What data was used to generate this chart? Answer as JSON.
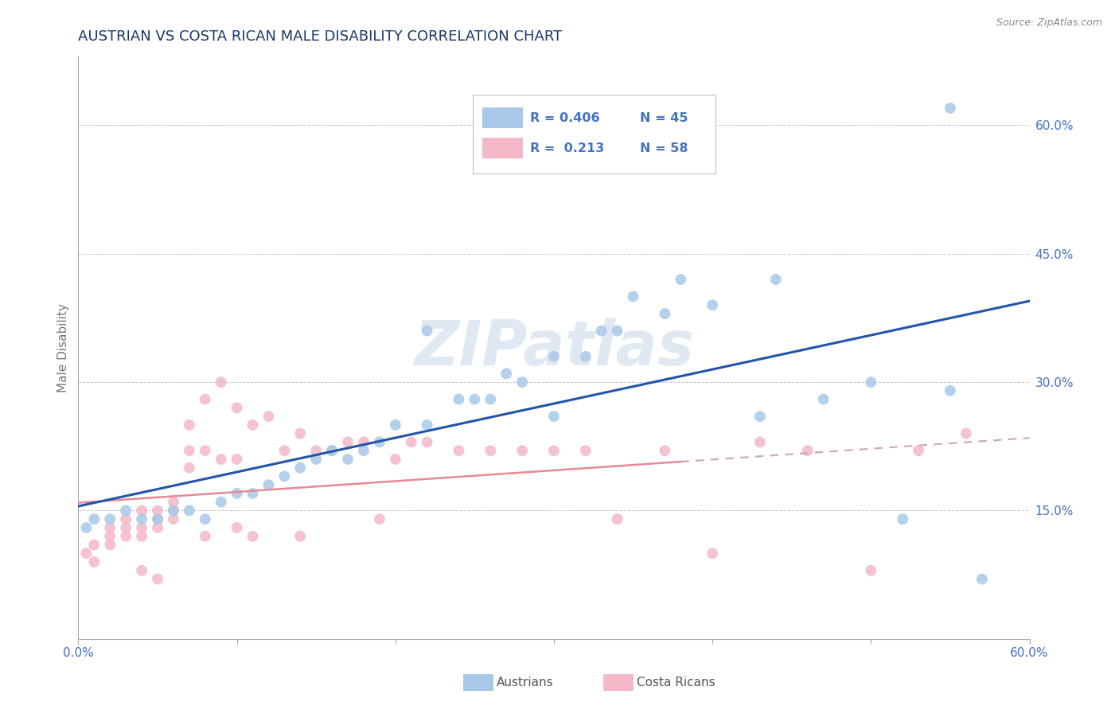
{
  "title": "AUSTRIAN VS COSTA RICAN MALE DISABILITY CORRELATION CHART",
  "source": "Source: ZipAtlas.com",
  "ylabel": "Male Disability",
  "xlim": [
    0.0,
    0.6
  ],
  "ylim": [
    0.0,
    0.68
  ],
  "yticks_right": [
    0.15,
    0.3,
    0.45,
    0.6
  ],
  "ytick_labels_right": [
    "15.0%",
    "30.0%",
    "45.0%",
    "60.0%"
  ],
  "legend_r_austrians": "R = 0.406",
  "legend_n_austrians": "N = 45",
  "legend_r_costa": "R =  0.213",
  "legend_n_costa": "N = 58",
  "austrian_color": "#a8c8e8",
  "costa_color": "#f4b8c8",
  "trend_austrian_color": "#2255aa",
  "trend_costa_color": "#d4a0a8",
  "watermark": "ZIPatlas",
  "background_color": "#ffffff",
  "grid_color": "#c8c8c8",
  "title_color": "#1a3a6a",
  "source_color": "#888888",
  "tick_label_color": "#4472c4",
  "bottom_label_color": "#555555",
  "austrians_x": [
    0.005,
    0.01,
    0.02,
    0.03,
    0.04,
    0.05,
    0.06,
    0.07,
    0.08,
    0.09,
    0.1,
    0.11,
    0.12,
    0.13,
    0.14,
    0.15,
    0.16,
    0.17,
    0.18,
    0.19,
    0.2,
    0.22,
    0.24,
    0.26,
    0.28,
    0.3,
    0.32,
    0.34,
    0.37,
    0.4,
    0.43,
    0.47,
    0.5,
    0.52,
    0.55,
    0.57,
    0.22,
    0.25,
    0.27,
    0.3,
    0.33,
    0.35,
    0.38,
    0.44,
    0.55
  ],
  "austrians_y": [
    0.13,
    0.14,
    0.14,
    0.15,
    0.14,
    0.14,
    0.15,
    0.15,
    0.14,
    0.16,
    0.17,
    0.17,
    0.18,
    0.19,
    0.2,
    0.21,
    0.22,
    0.21,
    0.22,
    0.23,
    0.25,
    0.25,
    0.28,
    0.28,
    0.3,
    0.33,
    0.33,
    0.36,
    0.38,
    0.39,
    0.26,
    0.28,
    0.3,
    0.14,
    0.62,
    0.07,
    0.36,
    0.28,
    0.31,
    0.26,
    0.36,
    0.4,
    0.42,
    0.42,
    0.29
  ],
  "costa_x": [
    0.005,
    0.01,
    0.01,
    0.02,
    0.02,
    0.02,
    0.03,
    0.03,
    0.03,
    0.04,
    0.04,
    0.04,
    0.04,
    0.05,
    0.05,
    0.05,
    0.05,
    0.06,
    0.06,
    0.06,
    0.07,
    0.07,
    0.07,
    0.08,
    0.08,
    0.08,
    0.09,
    0.09,
    0.1,
    0.1,
    0.1,
    0.11,
    0.11,
    0.12,
    0.13,
    0.14,
    0.14,
    0.15,
    0.16,
    0.17,
    0.18,
    0.19,
    0.2,
    0.21,
    0.22,
    0.24,
    0.26,
    0.28,
    0.3,
    0.32,
    0.34,
    0.37,
    0.4,
    0.43,
    0.46,
    0.5,
    0.53,
    0.56
  ],
  "costa_y": [
    0.1,
    0.09,
    0.11,
    0.11,
    0.12,
    0.13,
    0.12,
    0.13,
    0.14,
    0.12,
    0.13,
    0.15,
    0.08,
    0.13,
    0.14,
    0.15,
    0.07,
    0.14,
    0.15,
    0.16,
    0.2,
    0.22,
    0.25,
    0.12,
    0.22,
    0.28,
    0.21,
    0.3,
    0.13,
    0.21,
    0.27,
    0.12,
    0.25,
    0.26,
    0.22,
    0.24,
    0.12,
    0.22,
    0.22,
    0.23,
    0.23,
    0.14,
    0.21,
    0.23,
    0.23,
    0.22,
    0.22,
    0.22,
    0.22,
    0.22,
    0.14,
    0.22,
    0.1,
    0.23,
    0.22,
    0.08,
    0.22,
    0.24
  ]
}
